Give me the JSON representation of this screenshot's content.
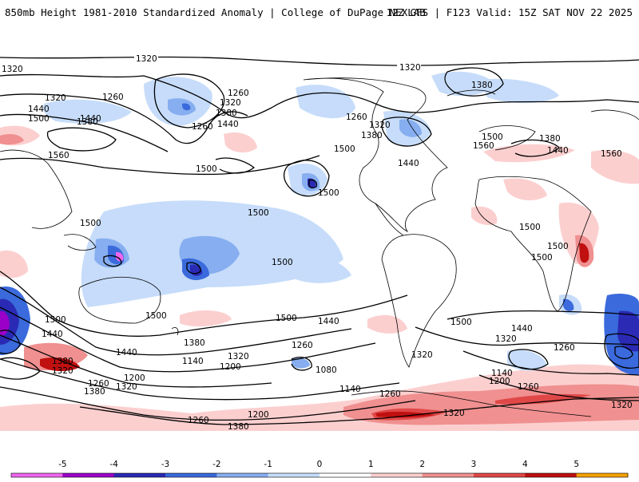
{
  "header": {
    "title": "850mb Height 1981-2010 Standardized Anomaly | College of DuPage NEXLAB",
    "run_info": "12Z GFS | F123 Valid: 15Z SAT NOV 22 2025"
  },
  "colorbar": {
    "ticks": [
      "-5",
      "-4",
      "-3",
      "-2",
      "-1",
      "0",
      "1",
      "2",
      "3",
      "4",
      "5"
    ],
    "colors": [
      "#ee66ee",
      "#9a00c8",
      "#2a2ab4",
      "#3a6adc",
      "#86aef0",
      "#c6dcfa",
      "#ffffff",
      "#fccfcf",
      "#f09090",
      "#e04848",
      "#c01010",
      "#f4a100"
    ]
  },
  "contour_labels": {
    "l1320a": "1320",
    "l1320b": "1320",
    "l1320c": "1320",
    "l1320d": "1320",
    "l1320e": "1320",
    "l1320f": "1320",
    "l1320g": "1320",
    "l1320h": "1320",
    "l1320i": "1320",
    "l1320j": "1320",
    "l1320k": "1320",
    "l1320l": "1320",
    "l1380a": "1380",
    "l1380b": "1380",
    "l1380c": "1380",
    "l1380d": "1380",
    "l1380e": "1380",
    "l1380f": "1380",
    "l1380g": "1380",
    "l1380h": "1380",
    "l1380i": "1380",
    "l1440a": "1440",
    "l1440b": "1440",
    "l1440c": "1440",
    "l1440d": "1440",
    "l1440e": "1440",
    "l1440f": "1440",
    "l1440g": "1440",
    "l1440h": "1440",
    "l1440i": "1440",
    "l1500a": "1500",
    "l1500b": "1500",
    "l1500c": "1500",
    "l1500d": "1500",
    "l1500e": "1500",
    "l1500f": "1500",
    "l1500g": "1500",
    "l1500h": "1500",
    "l1500i": "1500",
    "l1500j": "1500",
    "l1500k": "1500",
    "l1500l": "1500",
    "l1500m": "1500",
    "l1500n": "1500",
    "l1500o": "1500",
    "l1560a": "1560",
    "l1560b": "1560",
    "l1560c": "1560",
    "l1260a": "1260",
    "l1260b": "1260",
    "l1260c": "1260",
    "l1260d": "1260",
    "l1260e": "1260",
    "l1260f": "1260",
    "l1260g": "1260",
    "l1260h": "1260",
    "l1260i": "1260",
    "l1260j": "1260",
    "l1200a": "1200",
    "l1200b": "1200",
    "l1200c": "1200",
    "l1200d": "1200",
    "l1140a": "1140",
    "l1140b": "1140",
    "l1140c": "1140",
    "l1080a": "1080"
  }
}
